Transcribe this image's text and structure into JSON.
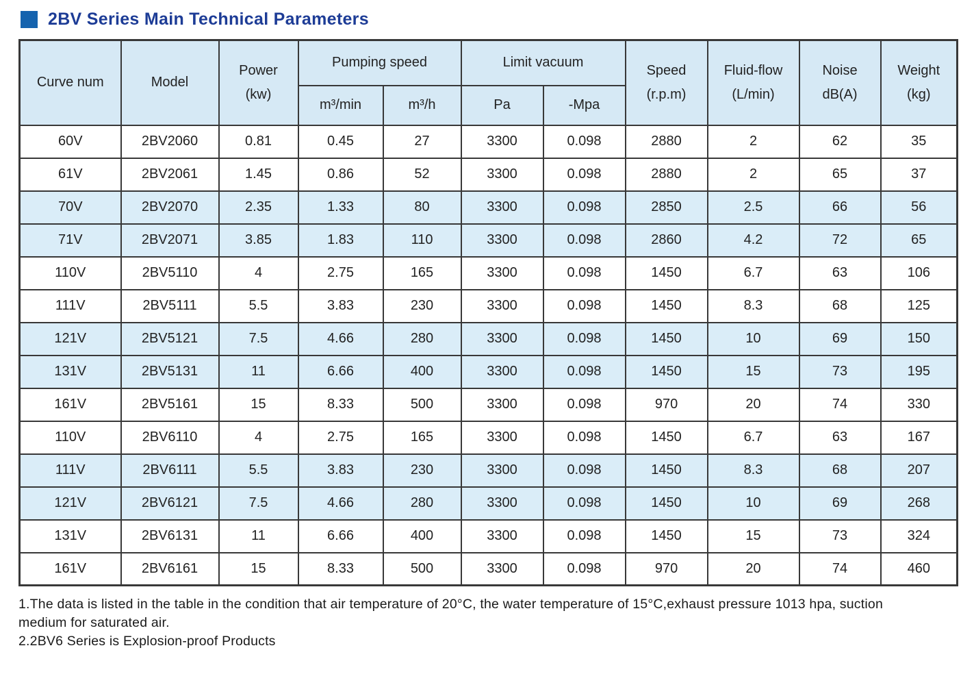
{
  "page": {
    "title": "2BV Series Main Technical Parameters"
  },
  "colors": {
    "title_blue": "#1d3c96",
    "square_blue": "#1563ae",
    "header_bg": "#d6e9f5",
    "row_bg": "#daedf8",
    "border": "#383838",
    "text": "#1f1f1f"
  },
  "table": {
    "header": {
      "curve_num": "Curve num",
      "model": "Model",
      "power_l1": "Power",
      "power_l2": "(kw)",
      "pumping_speed": "Pumping speed",
      "m3min": "m³/min",
      "m3h": "m³/h",
      "limit_vacuum": "Limit vacuum",
      "pa": "Pa",
      "mpa": "-Mpa",
      "speed_l1": "Speed",
      "speed_l2": "(r.p.m)",
      "fluid_l1": "Fluid-flow",
      "fluid_l2": "(L/min)",
      "noise_l1": "Noise",
      "noise_l2": "dB(A)",
      "weight_l1": "Weight",
      "weight_l2": "(kg)"
    },
    "rows": [
      {
        "curve": "60V",
        "model": "2BV2060",
        "power": "0.81",
        "m3min": "0.45",
        "m3h": "27",
        "pa": "3300",
        "mpa": "0.098",
        "speed": "2880",
        "fluid": "2",
        "noise": "62",
        "weight": "35",
        "shaded": false
      },
      {
        "curve": "61V",
        "model": "2BV2061",
        "power": "1.45",
        "m3min": "0.86",
        "m3h": "52",
        "pa": "3300",
        "mpa": "0.098",
        "speed": "2880",
        "fluid": "2",
        "noise": "65",
        "weight": "37",
        "shaded": false
      },
      {
        "curve": "70V",
        "model": "2BV2070",
        "power": "2.35",
        "m3min": "1.33",
        "m3h": "80",
        "pa": "3300",
        "mpa": "0.098",
        "speed": "2850",
        "fluid": "2.5",
        "noise": "66",
        "weight": "56",
        "shaded": true
      },
      {
        "curve": "71V",
        "model": "2BV2071",
        "power": "3.85",
        "m3min": "1.83",
        "m3h": "110",
        "pa": "3300",
        "mpa": "0.098",
        "speed": "2860",
        "fluid": "4.2",
        "noise": "72",
        "weight": "65",
        "shaded": true
      },
      {
        "curve": "110V",
        "model": "2BV5110",
        "power": "4",
        "m3min": "2.75",
        "m3h": "165",
        "pa": "3300",
        "mpa": "0.098",
        "speed": "1450",
        "fluid": "6.7",
        "noise": "63",
        "weight": "106",
        "shaded": false
      },
      {
        "curve": "111V",
        "model": "2BV5111",
        "power": "5.5",
        "m3min": "3.83",
        "m3h": "230",
        "pa": "3300",
        "mpa": "0.098",
        "speed": "1450",
        "fluid": "8.3",
        "noise": "68",
        "weight": "125",
        "shaded": false
      },
      {
        "curve": "121V",
        "model": "2BV5121",
        "power": "7.5",
        "m3min": "4.66",
        "m3h": "280",
        "pa": "3300",
        "mpa": "0.098",
        "speed": "1450",
        "fluid": "10",
        "noise": "69",
        "weight": "150",
        "shaded": true
      },
      {
        "curve": "131V",
        "model": "2BV5131",
        "power": "11",
        "m3min": "6.66",
        "m3h": "400",
        "pa": "3300",
        "mpa": "0.098",
        "speed": "1450",
        "fluid": "15",
        "noise": "73",
        "weight": "195",
        "shaded": true
      },
      {
        "curve": "161V",
        "model": "2BV5161",
        "power": "15",
        "m3min": "8.33",
        "m3h": "500",
        "pa": "3300",
        "mpa": "0.098",
        "speed": "970",
        "fluid": "20",
        "noise": "74",
        "weight": "330",
        "shaded": false
      },
      {
        "curve": "110V",
        "model": "2BV6110",
        "power": "4",
        "m3min": "2.75",
        "m3h": "165",
        "pa": "3300",
        "mpa": "0.098",
        "speed": "1450",
        "fluid": "6.7",
        "noise": "63",
        "weight": "167",
        "shaded": false
      },
      {
        "curve": "111V",
        "model": "2BV6111",
        "power": "5.5",
        "m3min": "3.83",
        "m3h": "230",
        "pa": "3300",
        "mpa": "0.098",
        "speed": "1450",
        "fluid": "8.3",
        "noise": "68",
        "weight": "207",
        "shaded": true
      },
      {
        "curve": "121V",
        "model": "2BV6121",
        "power": "7.5",
        "m3min": "4.66",
        "m3h": "280",
        "pa": "3300",
        "mpa": "0.098",
        "speed": "1450",
        "fluid": "10",
        "noise": "69",
        "weight": "268",
        "shaded": true
      },
      {
        "curve": "131V",
        "model": "2BV6131",
        "power": "11",
        "m3min": "6.66",
        "m3h": "400",
        "pa": "3300",
        "mpa": "0.098",
        "speed": "1450",
        "fluid": "15",
        "noise": "73",
        "weight": "324",
        "shaded": false
      },
      {
        "curve": "161V",
        "model": "2BV6161",
        "power": "15",
        "m3min": "8.33",
        "m3h": "500",
        "pa": "3300",
        "mpa": "0.098",
        "speed": "970",
        "fluid": "20",
        "noise": "74",
        "weight": "460",
        "shaded": false
      }
    ]
  },
  "notes": [
    "1.The data is listed in the table in the condition that air temperature of 20°C, the water temperature of 15°C,exhaust pressure 1013 hpa, suction medium for saturated air.",
    "2.2BV6 Series is Explosion-proof Products"
  ]
}
